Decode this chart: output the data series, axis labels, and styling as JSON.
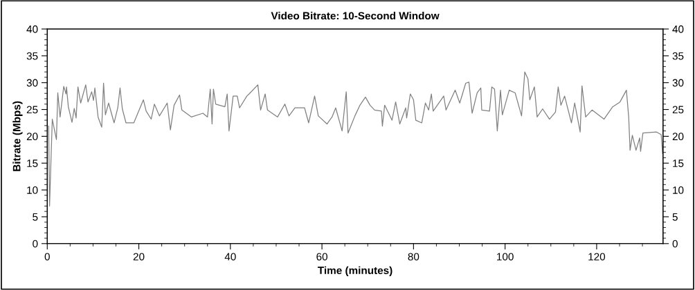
{
  "chart_data": {
    "type": "line",
    "title": "Video Bitrate: 10-Second Window",
    "xlabel": "Time (minutes)",
    "ylabel": "Bitrate (Mbps)",
    "xlim": [
      0,
      134.5
    ],
    "xticks": [
      0,
      20,
      40,
      60,
      80,
      100,
      120
    ],
    "ylim": [
      0,
      40
    ],
    "yticks": [
      0,
      5,
      10,
      15,
      20,
      25,
      30,
      35,
      40
    ],
    "y2lim": [
      0,
      40
    ],
    "y2ticks": [
      0,
      5,
      10,
      15,
      20,
      25,
      30,
      35,
      40
    ],
    "grid": false,
    "legend": false,
    "marker": "none",
    "line_style": "solid",
    "series": [
      {
        "color": "#808080",
        "x": [
          0.3,
          0.5,
          1.1,
          2.0,
          2.3,
          2.8,
          3.6,
          4.1,
          4.2,
          4.6,
          5.4,
          5.9,
          6.3,
          6.7,
          7.3,
          8.4,
          8.9,
          9.7,
          10.1,
          10.4,
          11.1,
          11.9,
          12.3,
          12.7,
          13.4,
          14.6,
          15.4,
          15.9,
          16.4,
          17.2,
          18.9,
          21.0,
          21.6,
          22.7,
          23.4,
          24.5,
          26.2,
          26.9,
          27.7,
          28.9,
          29.4,
          31.5,
          34.0,
          35.0,
          35.6,
          36.0,
          36.3,
          36.8,
          38.8,
          39.3,
          39.7,
          40.6,
          41.5,
          42.0,
          43.6,
          44.1,
          46.0,
          46.6,
          47.6,
          48.1,
          50.3,
          51.9,
          52.8,
          54.1,
          56.2,
          57.1,
          58.4,
          59.2,
          61.1,
          62.2,
          63.0,
          64.4,
          65.3,
          65.7,
          67.2,
          68.3,
          69.5,
          70.5,
          71.5,
          73.0,
          73.2,
          73.7,
          75.3,
          76.1,
          77.0,
          78.3,
          78.5,
          79.3,
          80.0,
          80.5,
          81.8,
          82.6,
          83.3,
          83.9,
          84.3,
          86.6,
          87.1,
          89.1,
          90.1,
          91.4,
          92.1,
          92.8,
          93.9,
          94.7,
          94.9,
          96.6,
          97.1,
          97.7,
          98.3,
          99.0,
          99.4,
          100.9,
          102.2,
          103.6,
          104.3,
          105.0,
          105.4,
          106.4,
          107.0,
          108.2,
          109.7,
          111.0,
          111.6,
          112.2,
          113.0,
          114.5,
          115.2,
          116.4,
          116.8,
          117.6,
          119.0,
          121.6,
          123.5,
          125.1,
          126.5,
          127.0,
          127.3,
          127.8,
          128.6,
          129.4,
          129.6,
          130.1,
          133.1,
          134.1,
          134.4
        ],
        "values": [
          21.9,
          7,
          23.2,
          19.4,
          28.1,
          23.6,
          29.3,
          27.9,
          29.2,
          25.5,
          22.6,
          25.2,
          23.4,
          29.2,
          26.2,
          29.6,
          26.4,
          28.3,
          26.7,
          29.0,
          23.6,
          21.7,
          29.9,
          24.0,
          26.2,
          22.5,
          25.3,
          29.0,
          25.1,
          22.5,
          22.5,
          26.8,
          24.7,
          23.2,
          26.0,
          23.8,
          26.2,
          21.2,
          25.8,
          27.7,
          24.9,
          23.6,
          24.3,
          23.6,
          28.8,
          22.3,
          28.8,
          26.0,
          25.5,
          27.9,
          21.0,
          27.5,
          27.5,
          25.3,
          27.5,
          27.9,
          29.6,
          24.9,
          27.9,
          24.9,
          23.6,
          26.0,
          23.8,
          25.3,
          25.3,
          22.5,
          27.5,
          23.8,
          22.3,
          23.6,
          25.3,
          21.0,
          28.3,
          20.6,
          23.8,
          25.8,
          27.3,
          25.8,
          24.9,
          24.7,
          21.9,
          25.8,
          23.0,
          26.4,
          22.3,
          25.3,
          23.4,
          27.9,
          26.8,
          23.0,
          22.5,
          26.2,
          24.9,
          27.9,
          24.7,
          27.5,
          24.9,
          28.6,
          26.2,
          29.9,
          30.1,
          24.3,
          28.1,
          29.0,
          24.9,
          24.7,
          29.2,
          28.8,
          21.0,
          28.6,
          24.0,
          28.6,
          28.1,
          23.8,
          32.0,
          30.7,
          26.8,
          29.2,
          23.6,
          25.1,
          23.2,
          24.5,
          29.2,
          25.8,
          27.5,
          22.5,
          26.2,
          20.8,
          29.4,
          23.6,
          24.9,
          23.2,
          25.5,
          26.4,
          28.6,
          23.6,
          17.4,
          20.2,
          17.4,
          19.7,
          17.2,
          20.6,
          20.8,
          20.3,
          16.8
        ]
      }
    ]
  }
}
